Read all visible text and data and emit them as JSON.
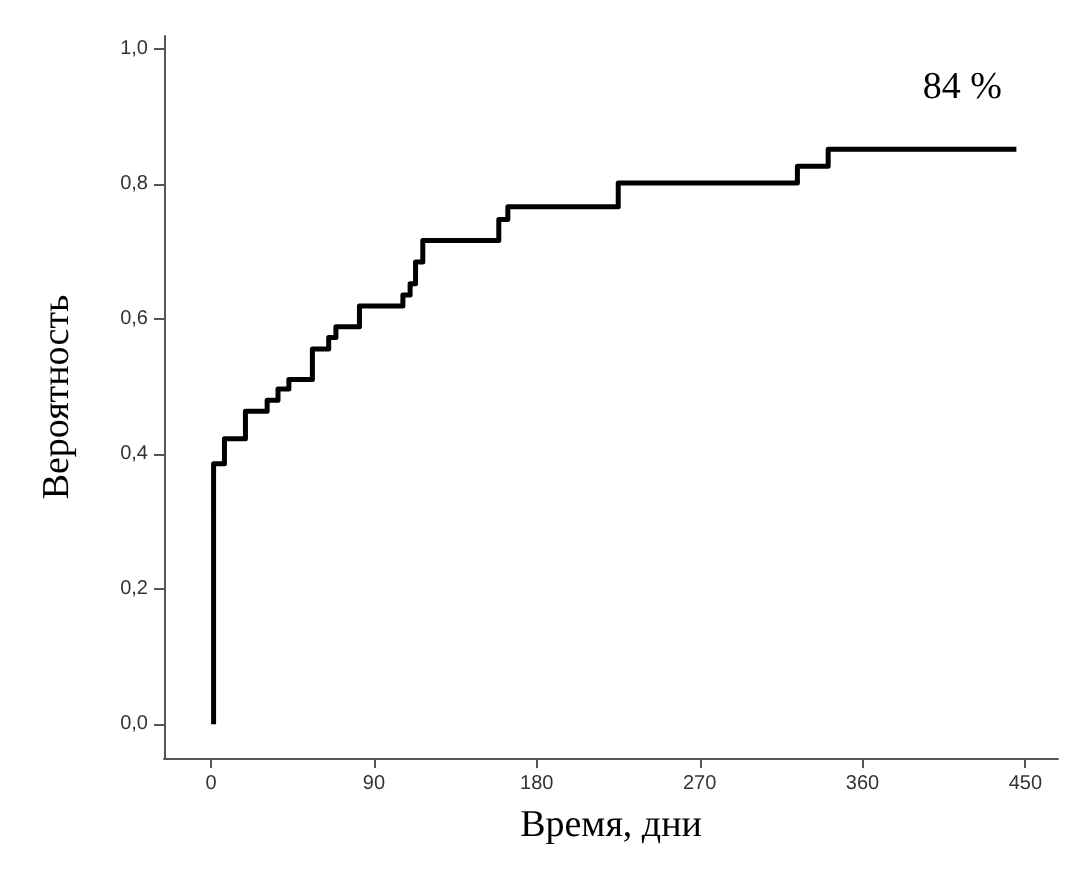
{
  "chart_data": {
    "type": "step",
    "xlabel": "Время, дни",
    "ylabel": "Вероятность",
    "x": [
      1.4,
      1.4,
      7.4,
      19,
      31,
      37,
      43,
      56,
      65,
      69,
      82,
      106,
      110,
      113,
      117,
      159,
      164,
      225,
      324,
      341,
      445
    ],
    "series": [
      {
        "color": "#000000",
        "values": [
          0,
          0.386,
          0.423,
          0.464,
          0.48,
          0.497,
          0.511,
          0.556,
          0.573,
          0.589,
          0.62,
          0.636,
          0.653,
          0.685,
          0.717,
          0.748,
          0.767,
          0.802,
          0.827,
          0.852,
          0.852
        ]
      }
    ],
    "xlim": [
      -26,
      468
    ],
    "ylim": [
      -0.05,
      1.02
    ],
    "xticks": [
      0,
      90,
      180,
      270,
      360,
      450
    ],
    "yticks": [
      {
        "value": 0,
        "label": "0,0"
      },
      {
        "value": 0.2,
        "label": "0,2"
      },
      {
        "value": 0.4,
        "label": "0,4"
      },
      {
        "value": 0.6,
        "label": "0,6"
      },
      {
        "value": 0.8,
        "label": "0,8"
      },
      {
        "value": 1,
        "label": "1,0"
      }
    ],
    "annotations": [
      "84 %"
    ],
    "grid": false,
    "marker": "none",
    "line_style": "solid"
  }
}
